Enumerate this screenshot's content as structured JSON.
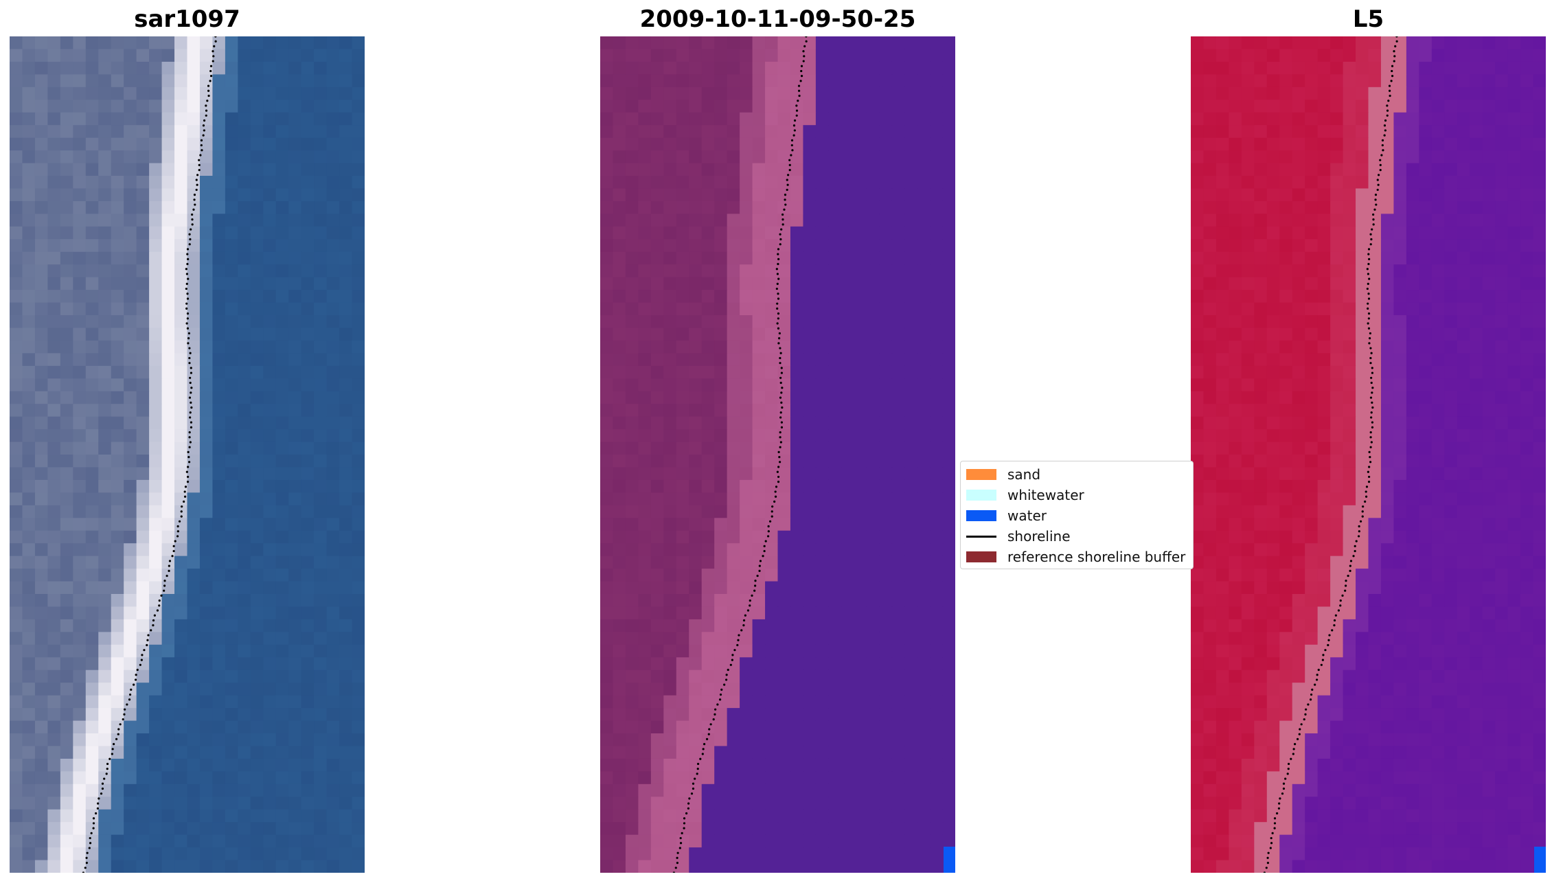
{
  "figure": {
    "panel_titles": [
      "sar1097",
      "2009-10-11-09-50-25",
      "L5"
    ]
  },
  "legend": {
    "items": [
      {
        "label": "sand",
        "color": "#ff8c3a",
        "kind": "patch"
      },
      {
        "label": "whitewater",
        "color": "#c9ffff",
        "kind": "patch"
      },
      {
        "label": "water",
        "color": "#0a5af5",
        "kind": "patch"
      },
      {
        "label": "shoreline",
        "color": "#000000",
        "kind": "line"
      },
      {
        "label": "reference shoreline buffer",
        "color": "#8e2a30",
        "kind": "patch"
      }
    ]
  },
  "chart_data": [
    {
      "type": "heatmap",
      "title": "sar1097",
      "description_kind": "rgb-image",
      "shoreline_x_by_row": [
        0.58,
        0.56,
        0.54,
        0.52,
        0.5,
        0.5,
        0.51,
        0.51,
        0.5,
        0.47,
        0.43,
        0.38,
        0.33,
        0.28,
        0.24,
        0.21
      ],
      "colors": {
        "water": "#2b5a90",
        "land": "#5a6890",
        "bright": "#f3f0f6"
      }
    },
    {
      "type": "heatmap",
      "title": "2009-10-11-09-50-25",
      "description_kind": "classified-image",
      "shoreline_x_by_row": [
        0.58,
        0.56,
        0.54,
        0.52,
        0.5,
        0.5,
        0.51,
        0.51,
        0.5,
        0.47,
        0.43,
        0.38,
        0.33,
        0.28,
        0.24,
        0.21
      ],
      "colors": {
        "water_class": "#542296",
        "land": "#7a2868",
        "buffer": "#b3588d"
      }
    },
    {
      "type": "heatmap",
      "title": "L5",
      "description_kind": "index-image",
      "shoreline_x_by_row": [
        0.58,
        0.56,
        0.54,
        0.52,
        0.5,
        0.5,
        0.51,
        0.51,
        0.5,
        0.47,
        0.43,
        0.38,
        0.33,
        0.28,
        0.24,
        0.21
      ],
      "colors": {
        "land": "#bf1240",
        "water": "#6a1aa0",
        "edge": "#cc6a8a"
      }
    }
  ]
}
